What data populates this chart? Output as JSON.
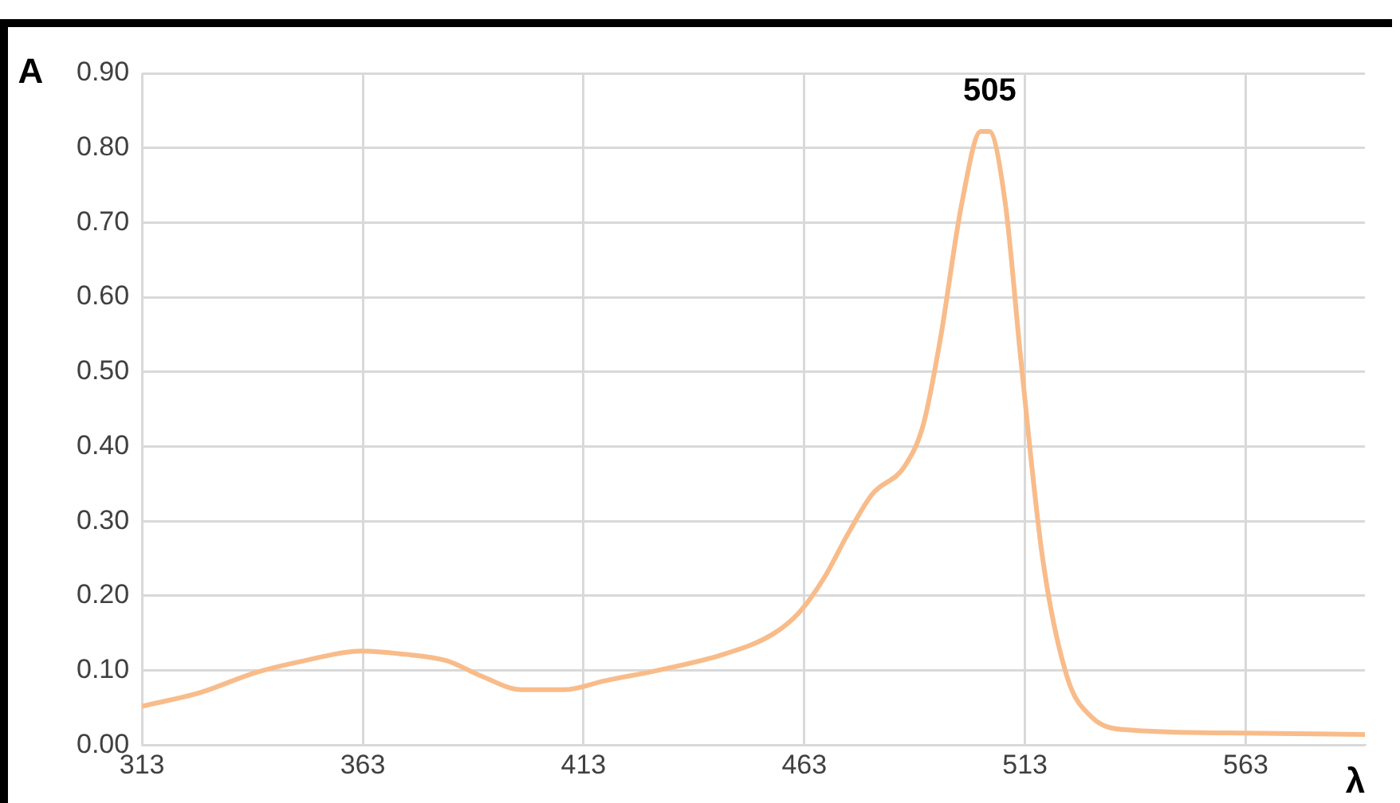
{
  "chart_data": {
    "type": "line",
    "xlabel": "λ",
    "ylabel": "A",
    "annotations": [
      {
        "text": "505",
        "x": 505,
        "y": 0.82
      }
    ],
    "series": [
      {
        "color": "#f8bc8a",
        "x": [
          313,
          326,
          338.7,
          349.8,
          362.6,
          371.8,
          382,
          390,
          399,
          408.6,
          417.8,
          430.6,
          445,
          456,
          461.9,
          467.4,
          473,
          478.4,
          485.8,
          490,
          493.8,
          498.6,
          503,
          504.9,
          508.6,
          512,
          517,
          522.5,
          528,
          537,
          563,
          590
        ],
        "values": [
          0.052,
          0.07,
          0.097,
          0.113,
          0.126,
          0.122,
          0.113,
          0.092,
          0.074,
          0.074,
          0.086,
          0.101,
          0.122,
          0.149,
          0.178,
          0.223,
          0.284,
          0.336,
          0.374,
          0.43,
          0.543,
          0.723,
          0.822,
          0.822,
          0.723,
          0.52,
          0.25,
          0.092,
          0.038,
          0.02,
          0.016,
          0.014
        ]
      }
    ],
    "xlim": [
      313,
      590
    ],
    "xticks": [
      313,
      363,
      413,
      463,
      513,
      563
    ],
    "ylim": [
      0,
      0.9
    ],
    "yticks": [
      {
        "value": 0,
        "label": "0.00"
      },
      {
        "value": 0.1,
        "label": "0.10"
      },
      {
        "value": 0.2,
        "label": "0.20"
      },
      {
        "value": 0.3,
        "label": "0.30"
      },
      {
        "value": 0.4,
        "label": "0.40"
      },
      {
        "value": 0.5,
        "label": "0.50"
      },
      {
        "value": 0.6,
        "label": "0.60"
      },
      {
        "value": 0.7,
        "label": "0.70"
      },
      {
        "value": 0.8,
        "label": "0.80"
      },
      {
        "value": 0.9,
        "label": "0.90"
      }
    ],
    "grid": true,
    "legend": false,
    "marker": "none",
    "line_style": "solid"
  }
}
